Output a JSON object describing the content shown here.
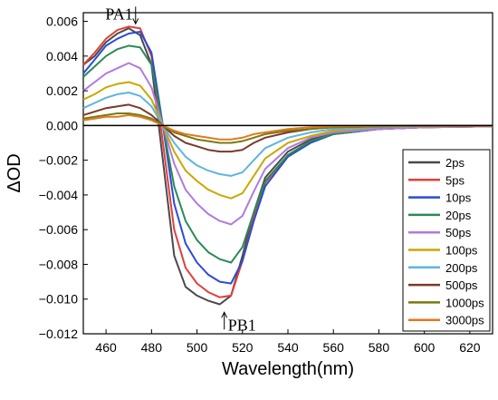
{
  "chart_data": {
    "type": "line",
    "xlabel": "Wavelength(nm)",
    "ylabel": "ΔOD",
    "xlim": [
      450,
      630
    ],
    "ylim": [
      -0.012,
      0.0065
    ],
    "xticks": [
      460,
      480,
      500,
      520,
      540,
      560,
      580,
      600,
      620
    ],
    "xtick_labels": [
      "460",
      "480",
      "500",
      "520",
      "540",
      "560",
      "580",
      "600",
      "620"
    ],
    "yticks": [
      0.006,
      0.004,
      0.002,
      0.0,
      -0.002,
      -0.004,
      -0.006,
      -0.008,
      -0.01,
      -0.012
    ],
    "ytick_labels": [
      "0.006",
      "0.004",
      "0.002",
      "0.000",
      "−0.002",
      "−0.004",
      "−0.006",
      "−0.008",
      "−0.010",
      "−0.012"
    ],
    "zero_line": true,
    "grid": false,
    "legend_position": "right",
    "annotations": [
      {
        "text": "PA1",
        "x": 473,
        "y": 0.0057,
        "arrow": "down"
      },
      {
        "text": "PB1",
        "x": 512,
        "y": -0.0105,
        "arrow": "up"
      }
    ],
    "x": [
      450,
      455,
      460,
      465,
      470,
      475,
      480,
      485,
      490,
      495,
      500,
      505,
      510,
      515,
      520,
      525,
      530,
      540,
      550,
      560,
      580,
      600,
      630
    ],
    "series": [
      {
        "name": "2ps",
        "color": "#4a4a4a",
        "values": [
          0.0035,
          0.004,
          0.0048,
          0.0053,
          0.0056,
          0.0052,
          0.0035,
          -0.002,
          -0.0075,
          -0.0093,
          -0.0098,
          -0.0101,
          -0.0103,
          -0.0098,
          -0.0075,
          -0.005,
          -0.003,
          -0.0015,
          -0.0008,
          -0.0004,
          -0.0002,
          -0.0001,
          -5e-05
        ]
      },
      {
        "name": "5ps",
        "color": "#e0403a",
        "values": [
          0.0035,
          0.0042,
          0.005,
          0.0055,
          0.0057,
          0.0056,
          0.004,
          -0.001,
          -0.006,
          -0.0082,
          -0.0091,
          -0.0096,
          -0.0099,
          -0.0098,
          -0.0078,
          -0.0053,
          -0.0033,
          -0.0017,
          -0.0009,
          -0.0005,
          -0.0002,
          -0.0001,
          -5e-05
        ]
      },
      {
        "name": "10ps",
        "color": "#2a4bd7",
        "values": [
          0.003,
          0.0038,
          0.0046,
          0.005,
          0.0053,
          0.0054,
          0.0042,
          0.0,
          -0.0045,
          -0.0068,
          -0.0079,
          -0.0086,
          -0.009,
          -0.0091,
          -0.0078,
          -0.0055,
          -0.0035,
          -0.0018,
          -0.001,
          -0.0005,
          -0.0002,
          -0.0001,
          -5e-05
        ]
      },
      {
        "name": "20ps",
        "color": "#2a8a55",
        "values": [
          0.0028,
          0.0034,
          0.004,
          0.0044,
          0.0046,
          0.0045,
          0.0035,
          0.0,
          -0.0035,
          -0.0055,
          -0.0066,
          -0.0073,
          -0.0077,
          -0.0079,
          -0.007,
          -0.005,
          -0.0032,
          -0.0017,
          -0.0009,
          -0.0005,
          -0.0002,
          -0.0001,
          -5e-05
        ]
      },
      {
        "name": "50ps",
        "color": "#b07ae0",
        "values": [
          0.002,
          0.0025,
          0.003,
          0.0033,
          0.0036,
          0.0033,
          0.0022,
          0.0,
          -0.0022,
          -0.0037,
          -0.0045,
          -0.0051,
          -0.0055,
          -0.0057,
          -0.0052,
          -0.0038,
          -0.0025,
          -0.0013,
          -0.0007,
          -0.0004,
          -0.0002,
          -0.0001,
          -5e-05
        ]
      },
      {
        "name": "100ps",
        "color": "#c9a800",
        "values": [
          0.0015,
          0.0018,
          0.0022,
          0.0024,
          0.0025,
          0.0023,
          0.0015,
          0.0,
          -0.0015,
          -0.0026,
          -0.0032,
          -0.0037,
          -0.004,
          -0.0042,
          -0.0039,
          -0.0029,
          -0.0019,
          -0.001,
          -0.0006,
          -0.0003,
          -0.0001,
          -5e-05,
          -2e-05
        ]
      },
      {
        "name": "200ps",
        "color": "#5fb4e0",
        "values": [
          0.001,
          0.0013,
          0.0016,
          0.0018,
          0.0019,
          0.0017,
          0.0011,
          0.0,
          -0.001,
          -0.0018,
          -0.0023,
          -0.0026,
          -0.0028,
          -0.0029,
          -0.0027,
          -0.002,
          -0.0013,
          -0.0007,
          -0.0004,
          -0.0002,
          -0.0001,
          -5e-05,
          -2e-05
        ]
      },
      {
        "name": "500ps",
        "color": "#7a3a2a",
        "values": [
          0.0006,
          0.0008,
          0.001,
          0.0011,
          0.0012,
          0.001,
          0.0006,
          0.0,
          -0.0006,
          -0.001,
          -0.0012,
          -0.0014,
          -0.0015,
          -0.0015,
          -0.0014,
          -0.001,
          -0.0007,
          -0.0004,
          -0.0002,
          -0.0001,
          -5e-05,
          -2e-05,
          -1e-05
        ]
      },
      {
        "name": "1000ps",
        "color": "#7a7a10",
        "values": [
          0.0004,
          0.0005,
          0.0006,
          0.0007,
          0.0007,
          0.0006,
          0.0004,
          0.0,
          -0.0004,
          -0.0006,
          -0.0008,
          -0.0009,
          -0.001,
          -0.001,
          -0.0009,
          -0.0007,
          -0.0005,
          -0.0003,
          -0.0002,
          -0.0001,
          -5e-05,
          -2e-05,
          -1e-05
        ]
      },
      {
        "name": "3000ps",
        "color": "#e07a20",
        "values": [
          0.0003,
          0.0004,
          0.0005,
          0.0005,
          0.0006,
          0.0005,
          0.0003,
          0.0,
          -0.0003,
          -0.0005,
          -0.0006,
          -0.0007,
          -0.0008,
          -0.0008,
          -0.0007,
          -0.0005,
          -0.0004,
          -0.0002,
          -0.0001,
          -5e-05,
          -2e-05,
          -1e-05,
          -1e-05
        ]
      }
    ]
  }
}
